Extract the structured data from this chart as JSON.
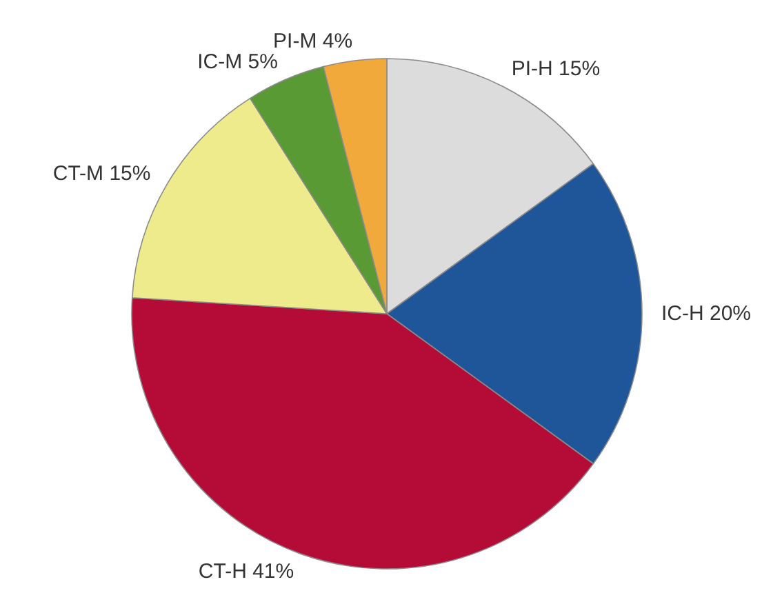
{
  "chart_data": {
    "type": "pie",
    "categories": [
      "PI-H",
      "IC-H",
      "CT-H",
      "CT-M",
      "IC-M",
      "PI-M"
    ],
    "values": [
      15,
      20,
      41,
      15,
      5,
      4
    ],
    "value_labels": [
      "15%",
      "20%",
      "41%",
      "15%",
      "5%",
      "4%"
    ],
    "colors": [
      "#dcdcdc",
      "#1f5599",
      "#b40c36",
      "#eeeb8c",
      "#5a9a34",
      "#f0a93a"
    ]
  }
}
